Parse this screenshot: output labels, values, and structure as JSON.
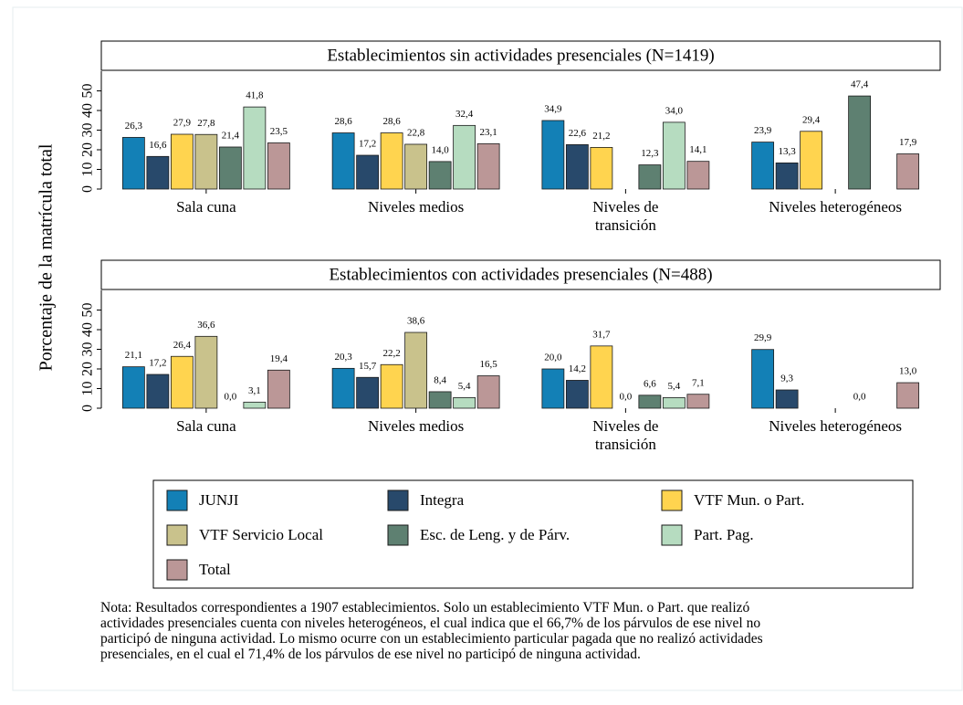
{
  "y_axis_label": "Porcentaje de la matrícula total",
  "chart_data": [
    {
      "type": "bar",
      "title": "Establecimientos sin actividades presenciales (N=1419)",
      "categories": [
        "Sala cuna",
        "Niveles medios",
        "Niveles de\ntransición",
        "Niveles heterogéneos"
      ],
      "ylim": [
        0,
        60
      ],
      "yticks": [
        0,
        10,
        20,
        30,
        40,
        50
      ],
      "series": [
        {
          "name": "JUNJI",
          "color": "#1380b6",
          "values": [
            26.3,
            28.6,
            34.9,
            23.9
          ],
          "value_labels": [
            "26,3",
            "28,6",
            "34,9",
            "23,9"
          ]
        },
        {
          "name": "Integra",
          "color": "#28496b",
          "values": [
            16.6,
            17.2,
            22.6,
            13.3
          ],
          "value_labels": [
            "16,6",
            "17,2",
            "22,6",
            "13,3"
          ]
        },
        {
          "name": "VTF Mun. o Part.",
          "color": "#ffd44f",
          "values": [
            27.9,
            28.6,
            21.2,
            29.4
          ],
          "value_labels": [
            "27,9",
            "28,6",
            "21,2",
            "29,4"
          ]
        },
        {
          "name": "VTF Servicio Local",
          "color": "#c9c28c",
          "values": [
            27.8,
            22.8,
            null,
            null
          ],
          "value_labels": [
            "27,8",
            "22,8",
            null,
            null
          ]
        },
        {
          "name": "Esc. de Leng. y de Párv.",
          "color": "#5e8071",
          "values": [
            21.4,
            14.0,
            12.3,
            47.4
          ],
          "value_labels": [
            "21,4",
            "14,0",
            "12,3",
            "47,4"
          ]
        },
        {
          "name": "Part. Pag.",
          "color": "#b6dcc0",
          "values": [
            41.8,
            32.4,
            34.0,
            null
          ],
          "value_labels": [
            "41,8",
            "32,4",
            "34,0",
            null
          ]
        },
        {
          "name": "Total",
          "color": "#bb9797",
          "values": [
            23.5,
            23.1,
            14.1,
            17.9
          ],
          "value_labels": [
            "23,5",
            "23,1",
            "14,1",
            "17,9"
          ]
        }
      ]
    },
    {
      "type": "bar",
      "title": "Establecimientos con actividades presenciales (N=488)",
      "categories": [
        "Sala cuna",
        "Niveles medios",
        "Niveles de\ntransición",
        "Niveles heterogéneos"
      ],
      "ylim": [
        0,
        60
      ],
      "yticks": [
        0,
        10,
        20,
        30,
        40,
        50
      ],
      "series": [
        {
          "name": "JUNJI",
          "color": "#1380b6",
          "values": [
            21.1,
            20.3,
            20.0,
            29.9
          ],
          "value_labels": [
            "21,1",
            "20,3",
            "20,0",
            "29,9"
          ]
        },
        {
          "name": "Integra",
          "color": "#28496b",
          "values": [
            17.2,
            15.7,
            14.2,
            9.3
          ],
          "value_labels": [
            "17,2",
            "15,7",
            "14,2",
            "9,3"
          ]
        },
        {
          "name": "VTF Mun. o Part.",
          "color": "#ffd44f",
          "values": [
            26.4,
            22.2,
            31.7,
            null
          ],
          "value_labels": [
            "26,4",
            "22,2",
            "31,7",
            null
          ]
        },
        {
          "name": "VTF Servicio Local",
          "color": "#c9c28c",
          "values": [
            36.6,
            38.6,
            0.0,
            null
          ],
          "value_labels": [
            "36,6",
            "38,6",
            "0,0",
            null
          ]
        },
        {
          "name": "Esc. de Leng. y de Párv.",
          "color": "#5e8071",
          "values": [
            0.0,
            8.4,
            6.6,
            0.0
          ],
          "value_labels": [
            "0,0",
            "8,4",
            "6,6",
            "0,0"
          ]
        },
        {
          "name": "Part. Pag.",
          "color": "#b6dcc0",
          "values": [
            3.1,
            5.4,
            5.4,
            null
          ],
          "value_labels": [
            "3,1",
            "5,4",
            "5,4",
            null
          ]
        },
        {
          "name": "Total",
          "color": "#bb9797",
          "values": [
            19.4,
            16.5,
            7.1,
            13.0
          ],
          "value_labels": [
            "19,4",
            "16,5",
            "7,1",
            "13,0"
          ]
        }
      ]
    }
  ],
  "note": [
    "Nota: Resultados correspondientes a 1907 establecimientos. Solo un establecimiento VTF Mun. o Part. que realizó",
    "actividades presenciales cuenta con niveles heterogéneos, el cual indica que el 66,7% de los párvulos de ese nivel no",
    "participó de ninguna actividad. Lo mismo ocurre con un establecimiento particular pagada que no realizó actividades",
    "presenciales, en el cual el 71,4% de los párvulos de ese nivel no participó de ninguna actividad."
  ]
}
